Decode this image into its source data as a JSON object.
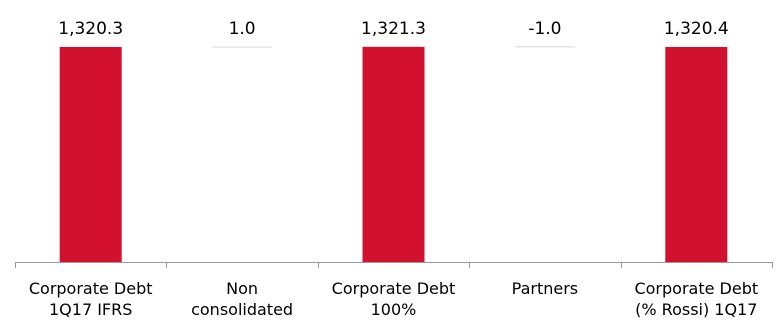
{
  "chart_data": {
    "type": "bar",
    "style": "waterfall",
    "categories": [
      [
        "Corporate Debt",
        "1Q17 IFRS"
      ],
      [
        "Non",
        "consolidated"
      ],
      [
        "Corporate Debt",
        "100%"
      ],
      [
        "Partners"
      ],
      [
        "Corporate Debt",
        "(% Rossi) 1Q17"
      ]
    ],
    "values": [
      1320.3,
      1.0,
      1321.3,
      -1.0,
      1320.4
    ],
    "value_labels": [
      "1,320.3",
      "1.0",
      "1,321.3",
      "-1.0",
      "1,320.4"
    ],
    "bar_kind": [
      "total",
      "delta",
      "total",
      "delta",
      "total"
    ],
    "ylim": [
      0,
      1330
    ],
    "grid": false,
    "legend": "none",
    "colors": {
      "total": "#d2112f",
      "delta": "#d2112f",
      "axis": "#999999",
      "text": "#000000"
    }
  }
}
